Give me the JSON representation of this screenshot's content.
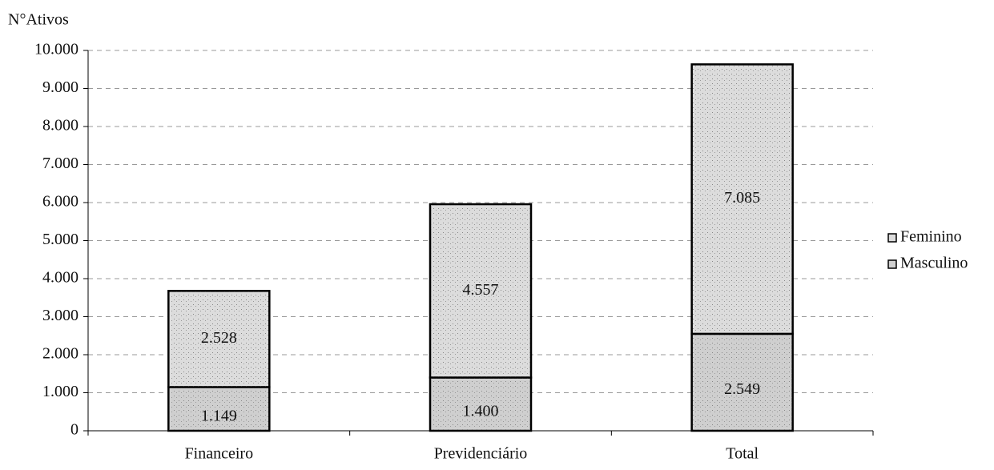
{
  "chart_data": {
    "type": "bar",
    "stacked": true,
    "y_axis_label": "N°Ativos",
    "categories": [
      "Financeiro",
      "Previdenciário",
      "Total"
    ],
    "series": [
      {
        "name": "Masculino",
        "color": "#cfcfcf",
        "values": [
          1149,
          1400,
          2549
        ],
        "value_labels": [
          "1.149",
          "1.400",
          "2.549"
        ]
      },
      {
        "name": "Feminino",
        "color": "#dcdcdc",
        "values": [
          2528,
          4557,
          7085
        ],
        "value_labels": [
          "2.528",
          "4.557",
          "7.085"
        ]
      }
    ],
    "ylim": [
      0,
      10000
    ],
    "yticks": [
      0,
      {
        "value": 1000,
        "label": "1.000"
      },
      {
        "value": 2000,
        "label": "2.000"
      },
      {
        "value": 3000,
        "label": "3.000"
      },
      {
        "value": 4000,
        "label": "4.000"
      },
      {
        "value": 5000,
        "label": "5.000"
      },
      {
        "value": 6000,
        "label": "6.000"
      },
      {
        "value": 7000,
        "label": "7.000"
      },
      {
        "value": 8000,
        "label": "8.000"
      },
      {
        "value": 9000,
        "label": "9.000"
      },
      {
        "value": 10000,
        "label": "10.000"
      }
    ],
    "grid": true,
    "legend": "right"
  }
}
